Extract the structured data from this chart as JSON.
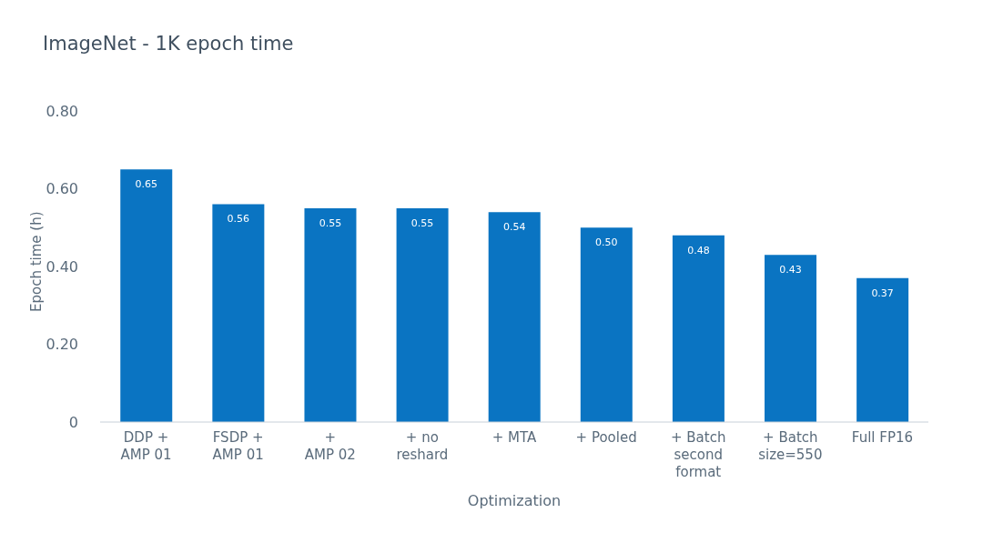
{
  "chart_data": {
    "type": "bar",
    "title": "ImageNet - 1K epoch time",
    "xlabel": "Optimization",
    "ylabel": "Epoch time (h)",
    "categories": [
      "DDP +\nAMP 01",
      "FSDP +\nAMP 01",
      "+\nAMP 02",
      "+ no\nreshard",
      "+ MTA",
      "+ Pooled",
      "+ Batch\nsecond\nformat",
      "+ Batch\nsize=550",
      "Full FP16"
    ],
    "values": [
      0.65,
      0.56,
      0.55,
      0.55,
      0.54,
      0.5,
      0.48,
      0.43,
      0.37
    ],
    "value_labels": [
      "0.65",
      "0.56",
      "0.55",
      "0.55",
      "0.54",
      "0.50",
      "0.48",
      "0.43",
      "0.37"
    ],
    "color": "#0a74c2",
    "grid": false,
    "legend": false,
    "ylim": [
      0,
      0.8
    ],
    "yticks": [
      {
        "value": 0,
        "label": "0"
      },
      {
        "value": 0.2,
        "label": "0.20"
      },
      {
        "value": 0.4,
        "label": "0.40"
      },
      {
        "value": 0.6,
        "label": "0.60"
      },
      {
        "value": 0.8,
        "label": "0.80"
      }
    ]
  }
}
